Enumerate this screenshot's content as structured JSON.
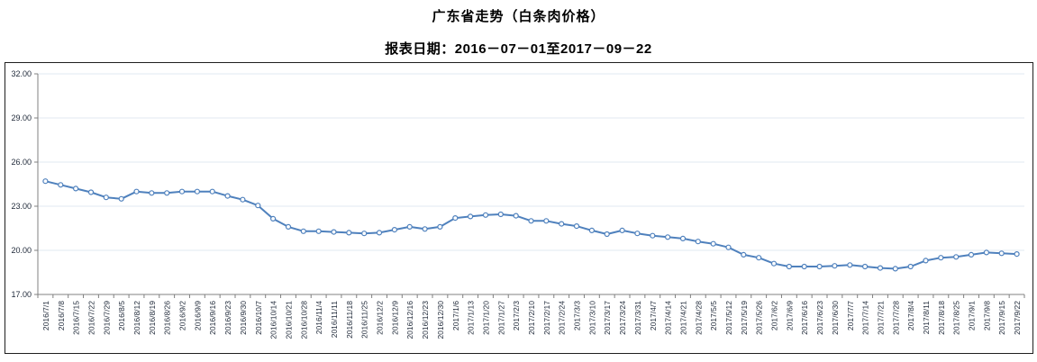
{
  "header": {
    "title": "广东省走势（白条肉价格）",
    "subtitle": "报表日期：2016－07－01至2017－09－22"
  },
  "chart_data": {
    "type": "line",
    "title": "广东省走势（白条肉价格）",
    "subtitle": "报表日期：2016－07－01至2017－09－22",
    "xlabel": "",
    "ylabel": "",
    "ylim": [
      17,
      32
    ],
    "grid": true,
    "legend_position": "none",
    "yticks": [
      {
        "value": 17,
        "label": "17.00"
      },
      {
        "value": 20,
        "label": "20.00"
      },
      {
        "value": 23,
        "label": "23.00"
      },
      {
        "value": 26,
        "label": "26.00"
      },
      {
        "value": 29,
        "label": "29.00"
      },
      {
        "value": 32,
        "label": "32.00"
      }
    ],
    "x": [
      "2016/7/1",
      "2016/7/8",
      "2016/7/15",
      "2016/7/22",
      "2016/7/29",
      "2016/8/5",
      "2016/8/12",
      "2016/8/19",
      "2016/8/26",
      "2016/9/2",
      "2016/9/9",
      "2016/9/16",
      "2016/9/23",
      "2016/9/30",
      "2016/10/7",
      "2016/10/14",
      "2016/10/21",
      "2016/10/28",
      "2016/11/4",
      "2016/11/11",
      "2016/11/18",
      "2016/11/25",
      "2016/12/2",
      "2016/12/9",
      "2016/12/16",
      "2016/12/23",
      "2016/12/30",
      "2017/1/6",
      "2017/1/13",
      "2017/1/20",
      "2017/1/27",
      "2017/2/3",
      "2017/2/10",
      "2017/2/17",
      "2017/2/24",
      "2017/3/3",
      "2017/3/10",
      "2017/3/17",
      "2017/3/24",
      "2017/3/31",
      "2017/4/7",
      "2017/4/14",
      "2017/4/21",
      "2017/4/28",
      "2017/5/5",
      "2017/5/12",
      "2017/5/19",
      "2017/5/26",
      "2017/6/2",
      "2017/6/9",
      "2017/6/16",
      "2017/6/23",
      "2017/6/30",
      "2017/7/7",
      "2017/7/14",
      "2017/7/21",
      "2017/7/28",
      "2017/8/4",
      "2017/8/11",
      "2017/8/18",
      "2017/8/25",
      "2017/9/1",
      "2017/9/8",
      "2017/9/15",
      "2017/9/22"
    ],
    "series": [
      {
        "name": "白条肉价格",
        "values": [
          24.7,
          24.45,
          24.2,
          23.95,
          23.6,
          23.5,
          24.0,
          23.9,
          23.9,
          24.0,
          24.0,
          24.0,
          23.7,
          23.45,
          23.05,
          22.15,
          21.6,
          21.3,
          21.3,
          21.25,
          21.2,
          21.15,
          21.2,
          21.4,
          21.6,
          21.45,
          21.6,
          22.2,
          22.3,
          22.4,
          22.45,
          22.35,
          22.0,
          22.0,
          21.8,
          21.65,
          21.35,
          21.1,
          21.35,
          21.15,
          21.0,
          20.9,
          20.8,
          20.6,
          20.45,
          20.2,
          19.7,
          19.5,
          19.1,
          18.9,
          18.9,
          18.9,
          18.95,
          19.0,
          18.9,
          18.8,
          18.75,
          18.9,
          19.3,
          19.5,
          19.55,
          19.7,
          19.85,
          19.8,
          19.75
        ]
      }
    ],
    "marker": "hollow-circle",
    "colors": {
      "line": "#4F81BD",
      "marker_fill": "#FFFFFF",
      "gridline": "#E2E8F2",
      "axis": "#808080",
      "axis_text": "#1E2838",
      "frame_border": "#1F1F1F",
      "title_text": "#000000"
    }
  }
}
